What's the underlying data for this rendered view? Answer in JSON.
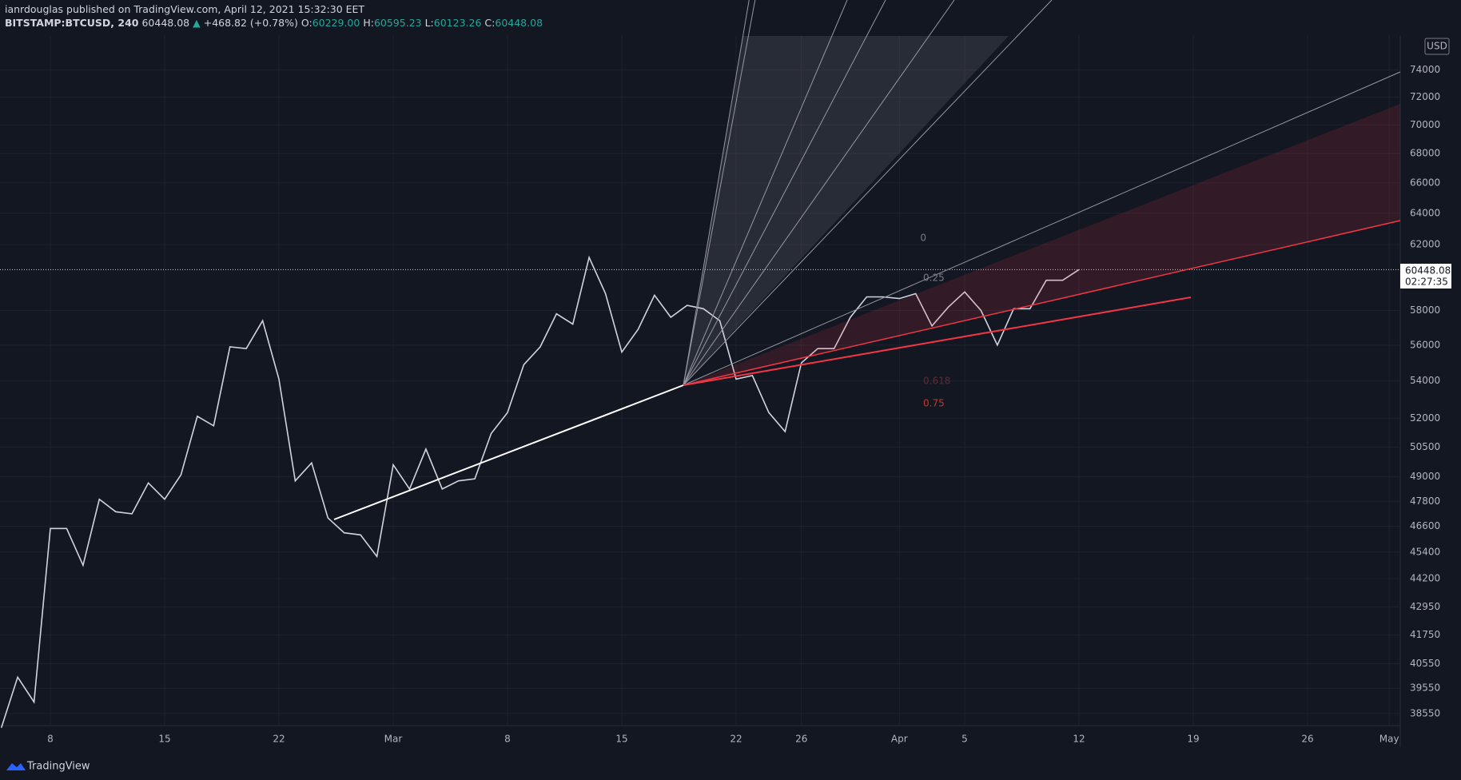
{
  "header": {
    "author_line": "ianrdouglas published on TradingView.com, April 12, 2021 15:32:30 EET",
    "symbol": "BITSTAMP:BTCUSD, 240",
    "last": "60448.08",
    "arrow": "▲",
    "change": "+468.82 (+0.78%)",
    "o_label": "O:",
    "o": "60229.00",
    "h_label": "H:",
    "h": "60595.23",
    "l_label": "L:",
    "l": "60123.26",
    "c_label": "C:",
    "c": "60448.08"
  },
  "currency": "USD",
  "countdown": "02:27:35",
  "fib_labels": [
    "0",
    "0.25",
    "0.618",
    "0.75"
  ],
  "footer": "TradingView",
  "chart_data": {
    "type": "line",
    "log_scale": true,
    "grid": true,
    "color": "#d1d4dc",
    "categories": [
      null,
      null,
      null,
      "8",
      null,
      null,
      null,
      null,
      null,
      null,
      "15",
      null,
      null,
      null,
      null,
      null,
      null,
      "22",
      null,
      null,
      null,
      null,
      null,
      null,
      "Mar",
      null,
      null,
      null,
      null,
      null,
      null,
      "8",
      null,
      null,
      null,
      null,
      null,
      null,
      "15",
      null,
      null,
      null,
      null,
      null,
      null,
      "22",
      null,
      null,
      null,
      "26",
      null,
      null,
      null,
      null,
      null,
      "Apr",
      null,
      null,
      null,
      "5",
      null,
      null,
      null,
      null,
      null,
      null,
      "12",
      null,
      null,
      null,
      null,
      null,
      null,
      "19",
      null,
      null,
      null,
      null,
      null,
      null,
      "26",
      null,
      null,
      null,
      null,
      "May"
    ],
    "values": [
      38000,
      40000,
      39000,
      46500,
      46500,
      44800,
      47900,
      47300,
      47200,
      48700,
      47900,
      49100,
      52100,
      51600,
      55900,
      55800,
      57400,
      54100,
      48800,
      49700,
      47000,
      46300,
      46200,
      45200,
      49600,
      48400,
      50400,
      48400,
      48800,
      48900,
      51200,
      52300,
      54900,
      55900,
      57800,
      57200,
      61200,
      59000,
      55600,
      56900,
      58900,
      57600,
      58300,
      58100,
      57400,
      54100,
      54300,
      52300,
      51300,
      55000,
      55800,
      55800,
      57600,
      58800,
      58800,
      58700,
      59000,
      57100,
      58200,
      59100,
      58000,
      56000,
      58100,
      58100,
      59800,
      59800,
      60448.08,
      null,
      null,
      null,
      null,
      null,
      null,
      null,
      null,
      null,
      null,
      null,
      null,
      null,
      null,
      null,
      null,
      null,
      null,
      null
    ],
    "ylim": [
      38080,
      76600
    ],
    "yticks": [
      38550,
      39550,
      40550,
      41750,
      42950,
      44200,
      45400,
      46600,
      47800,
      49000,
      50500,
      52000,
      54000,
      56000,
      58000,
      62000,
      64000,
      66000,
      68000,
      70000,
      72000,
      74000
    ]
  }
}
